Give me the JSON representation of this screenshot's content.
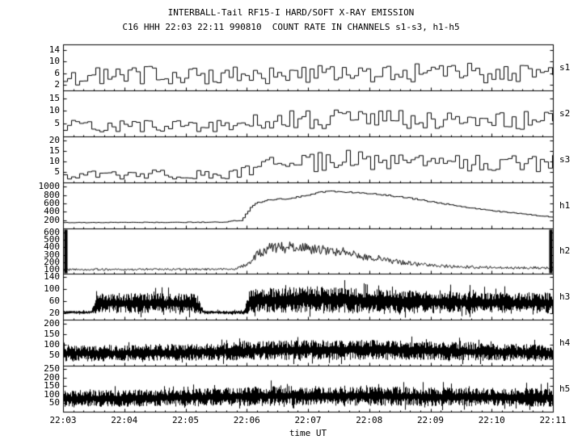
{
  "chart_data": {
    "type": "line",
    "title": "INTERBALL-Tail RF15-I HARD/SOFT X-RAY EMISSION",
    "subtitle": "C16 HHH 22:03 22:11 990810  COUNT RATE IN CHANNELS s1-s3, h1-h5",
    "xlabel": "time UT",
    "x_ticks": [
      "22:03",
      "22:04",
      "22:05",
      "22:06",
      "22:07",
      "22:08",
      "22:09",
      "22:10",
      "22:11"
    ],
    "x_range_minutes": [
      0,
      8
    ],
    "grid": false,
    "legend": "none",
    "panels": [
      {
        "label": "s1",
        "style": "hist",
        "ylim": [
          0,
          16
        ],
        "yticks": [
          2,
          6,
          10,
          14
        ],
        "profile": [
          [
            0,
            5,
            3
          ],
          [
            2,
            5.5,
            3.2
          ],
          [
            4,
            6,
            3.5
          ],
          [
            6,
            6,
            3.5
          ],
          [
            8,
            6.5,
            3.8
          ]
        ]
      },
      {
        "label": "s2",
        "style": "hist",
        "ylim": [
          0,
          18
        ],
        "yticks": [
          5,
          10,
          15
        ],
        "profile": [
          [
            0,
            4,
            2.5
          ],
          [
            2.5,
            4.5,
            2.5
          ],
          [
            3.5,
            6.5,
            3.5
          ],
          [
            5,
            7.5,
            4
          ],
          [
            6.5,
            7,
            4
          ],
          [
            8,
            6.5,
            4
          ]
        ]
      },
      {
        "label": "s3",
        "style": "hist",
        "ylim": [
          0,
          22
        ],
        "yticks": [
          5,
          10,
          15,
          20
        ],
        "profile": [
          [
            0,
            3.5,
            2
          ],
          [
            2.8,
            4.5,
            2.5
          ],
          [
            3.3,
            8,
            4
          ],
          [
            4.5,
            11,
            5
          ],
          [
            5.5,
            10,
            5
          ],
          [
            6.5,
            9.5,
            4.5
          ],
          [
            8,
            9,
            4.5
          ]
        ]
      },
      {
        "label": "h1",
        "style": "smooth",
        "ylim": [
          0,
          1100
        ],
        "yticks": [
          200,
          400,
          600,
          800,
          1000
        ],
        "profile": [
          [
            0,
            150,
            6
          ],
          [
            2.6,
            160,
            8
          ],
          [
            2.9,
            210,
            15
          ],
          [
            3.0,
            420,
            25
          ],
          [
            3.1,
            600,
            20
          ],
          [
            3.3,
            680,
            18
          ],
          [
            3.7,
            730,
            18
          ],
          [
            4.0,
            820,
            20
          ],
          [
            4.3,
            900,
            15
          ],
          [
            4.6,
            880,
            15
          ],
          [
            5.0,
            840,
            18
          ],
          [
            5.4,
            780,
            18
          ],
          [
            5.8,
            700,
            18
          ],
          [
            6.2,
            600,
            15
          ],
          [
            6.6,
            510,
            15
          ],
          [
            7.0,
            430,
            12
          ],
          [
            7.4,
            370,
            10
          ],
          [
            7.8,
            310,
            8
          ],
          [
            8,
            280,
            8
          ]
        ]
      },
      {
        "label": "h2",
        "style": "noise-line",
        "edge_spikes": true,
        "ylim": [
          50,
          650
        ],
        "yticks": [
          100,
          200,
          300,
          400,
          500,
          600
        ],
        "profile": [
          [
            0,
            110,
            18
          ],
          [
            2.8,
            115,
            18
          ],
          [
            3.0,
            180,
            40
          ],
          [
            3.2,
            330,
            80
          ],
          [
            3.4,
            390,
            90
          ],
          [
            3.7,
            400,
            90
          ],
          [
            4.1,
            380,
            85
          ],
          [
            4.6,
            330,
            75
          ],
          [
            5.0,
            280,
            60
          ],
          [
            5.4,
            220,
            45
          ],
          [
            5.8,
            180,
            35
          ],
          [
            6.3,
            150,
            28
          ],
          [
            7.0,
            135,
            22
          ],
          [
            8,
            130,
            22
          ]
        ]
      },
      {
        "label": "h3",
        "style": "noise-band",
        "ylim": [
          0,
          150
        ],
        "yticks": [
          20,
          60,
          100,
          140
        ],
        "profile": [
          [
            0,
            25,
            5
          ],
          [
            0.45,
            25,
            5
          ],
          [
            0.55,
            55,
            33
          ],
          [
            2.15,
            55,
            33
          ],
          [
            2.3,
            25,
            6
          ],
          [
            2.95,
            25,
            6
          ],
          [
            3.05,
            62,
            40
          ],
          [
            4.0,
            68,
            44
          ],
          [
            5.0,
            62,
            40
          ],
          [
            6.0,
            58,
            37
          ],
          [
            8,
            55,
            35
          ]
        ]
      },
      {
        "label": "h4",
        "style": "noise-band",
        "ylim": [
          0,
          220
        ],
        "yticks": [
          50,
          100,
          150,
          200
        ],
        "profile": [
          [
            0,
            60,
            38
          ],
          [
            2,
            65,
            40
          ],
          [
            3.5,
            75,
            48
          ],
          [
            5,
            78,
            48
          ],
          [
            6.5,
            70,
            44
          ],
          [
            8,
            62,
            40
          ]
        ]
      },
      {
        "label": "h5",
        "style": "noise-band",
        "ylim": [
          0,
          270
        ],
        "yticks": [
          50,
          100,
          150,
          200,
          250
        ],
        "profile": [
          [
            0,
            78,
            48
          ],
          [
            2,
            85,
            52
          ],
          [
            3.5,
            95,
            58
          ],
          [
            5,
            95,
            58
          ],
          [
            6.5,
            88,
            55
          ],
          [
            8,
            85,
            55
          ]
        ]
      }
    ]
  }
}
